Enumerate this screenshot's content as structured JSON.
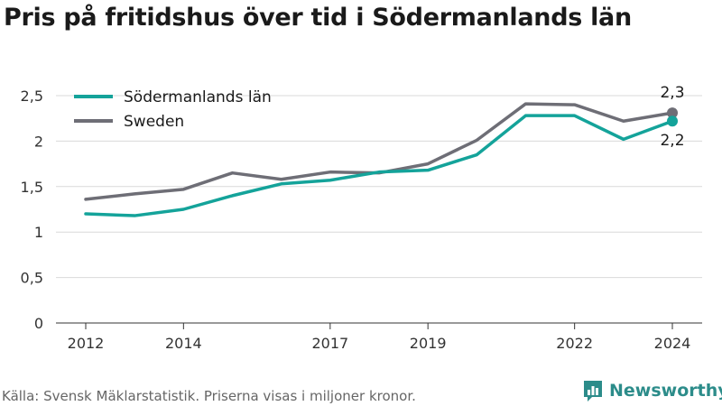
{
  "title": "Pris på fritidshus över tid i Södermanlands län",
  "footer": "Källa: Svensk Mäklarstatistik. Priserna visas i miljoner kronor.",
  "brand": {
    "name": "Newsworthy",
    "icon": "newsworthy-logo-icon",
    "color": "#2c8c8a"
  },
  "chart_data": {
    "type": "line",
    "x": [
      2012,
      2013,
      2014,
      2015,
      2016,
      2017,
      2018,
      2019,
      2020,
      2021,
      2022,
      2023,
      2024
    ],
    "x_tick_values": [
      2012,
      2014,
      2017,
      2019,
      2022,
      2024
    ],
    "x_tick_labels": [
      "2012",
      "2014",
      "2017",
      "2019",
      "2022",
      "2024"
    ],
    "ylim": [
      0,
      2.5
    ],
    "y_ticks": [
      0,
      0.5,
      1,
      1.5,
      2,
      2.5
    ],
    "y_tick_labels": [
      "0",
      "0,5",
      "1",
      "1,5",
      "2",
      "2,5"
    ],
    "grid": true,
    "legend_position": "top-left",
    "series": [
      {
        "name": "Södermanlands län",
        "color": "#14a39a",
        "values": [
          1.2,
          1.18,
          1.25,
          1.4,
          1.53,
          1.57,
          1.66,
          1.68,
          1.85,
          2.28,
          2.28,
          2.02,
          2.22
        ],
        "end_label": "2,2"
      },
      {
        "name": "Sweden",
        "color": "#6e6e76",
        "values": [
          1.36,
          1.42,
          1.47,
          1.65,
          1.58,
          1.66,
          1.65,
          1.75,
          2.01,
          2.41,
          2.4,
          2.22,
          2.31
        ],
        "end_label": "2,3"
      }
    ]
  }
}
